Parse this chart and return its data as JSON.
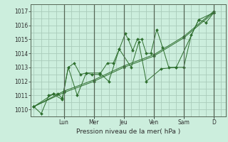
{
  "title": "",
  "xlabel": "Pression niveau de la mer( hPa )",
  "ylabel": "",
  "bg_color": "#cceedd",
  "grid_color": "#aaccbb",
  "line_color": "#2d6e2d",
  "marker_color": "#2d6e2d",
  "ylim": [
    1009.5,
    1017.5
  ],
  "yticks": [
    1010,
    1011,
    1012,
    1013,
    1014,
    1015,
    1016,
    1017
  ],
  "day_labels": [
    "Lun",
    "Mer",
    "Jeu",
    "Ven",
    "Sam",
    "D"
  ],
  "day_positions": [
    2.0,
    4.0,
    6.0,
    8.0,
    10.0,
    12.0
  ],
  "xlim": [
    -0.2,
    12.8
  ],
  "series": [
    [
      0.0,
      1010.2,
      0.5,
      1009.7,
      1.0,
      1011.0,
      1.3,
      1011.1,
      1.6,
      1011.1,
      1.9,
      1010.8,
      2.3,
      1013.0,
      2.7,
      1013.3,
      3.1,
      1012.5,
      3.5,
      1012.6,
      3.9,
      1012.5,
      4.4,
      1012.5,
      4.9,
      1013.3,
      5.3,
      1013.3,
      5.7,
      1014.3,
      6.1,
      1015.4,
      6.3,
      1015.0,
      6.6,
      1014.2,
      6.9,
      1015.0,
      7.2,
      1015.0,
      7.5,
      1014.0,
      7.8,
      1014.0,
      8.2,
      1015.7,
      8.6,
      1014.4,
      9.0,
      1013.0,
      9.5,
      1013.0,
      10.0,
      1013.0,
      10.5,
      1015.3,
      11.0,
      1016.4,
      11.5,
      1016.2,
      12.0,
      1016.9
    ],
    [
      0.0,
      1010.2,
      1.3,
      1011.1,
      1.9,
      1010.7,
      2.3,
      1013.0,
      2.9,
      1011.0,
      3.5,
      1012.6,
      4.4,
      1012.6,
      5.0,
      1012.0,
      5.7,
      1014.3,
      6.5,
      1013.0,
      7.0,
      1014.8,
      7.5,
      1012.0,
      8.5,
      1012.9,
      9.5,
      1013.0,
      11.0,
      1016.4,
      12.0,
      1016.9
    ],
    [
      0.0,
      1010.2,
      2.0,
      1011.2,
      4.0,
      1012.0,
      6.0,
      1013.0,
      8.0,
      1013.8,
      10.0,
      1015.1,
      12.0,
      1016.9
    ],
    [
      0.0,
      1010.2,
      2.0,
      1011.3,
      4.0,
      1012.1,
      6.0,
      1013.1,
      8.0,
      1013.9,
      10.0,
      1015.2,
      12.0,
      1017.0
    ]
  ]
}
